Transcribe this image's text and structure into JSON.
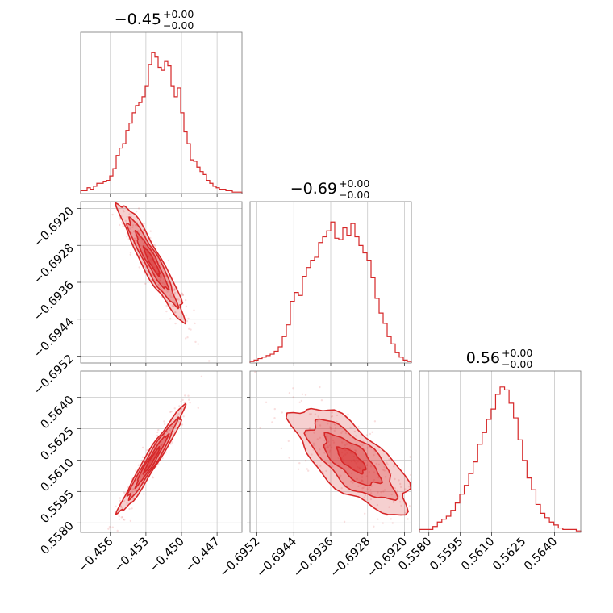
{
  "chart_data": {
    "type": "corner",
    "color": "#d62728",
    "parameters": [
      {
        "index": 0,
        "title": {
          "median": "−0.45",
          "plus": "+0.00",
          "minus": "−0.00"
        },
        "range": [
          -0.4585,
          -0.4449
        ],
        "ticks": [
          -0.456,
          -0.453,
          -0.45,
          -0.447
        ],
        "tick_labels": [
          "−0.456",
          "−0.453",
          "−0.450",
          "−0.447"
        ],
        "mean": -0.4525,
        "sd": 0.0012
      },
      {
        "index": 1,
        "title": {
          "median": "−0.69",
          "plus": "+0.00",
          "minus": "−0.00"
        },
        "range": [
          -0.69535,
          -0.69185
        ],
        "ticks": [
          -0.6952,
          -0.6944,
          -0.6936,
          -0.6928,
          -0.692
        ],
        "tick_labels": [
          "−0.6952",
          "−0.6944",
          "−0.6936",
          "−0.6928",
          "−0.6920"
        ],
        "mean": -0.69315,
        "sd": 0.00055
      },
      {
        "index": 2,
        "title": {
          "median": "0.56",
          "plus": "+0.00",
          "minus": "−0.00"
        },
        "range": [
          0.55755,
          0.56525
        ],
        "ticks": [
          0.558,
          0.5595,
          0.561,
          0.5625,
          0.564
        ],
        "tick_labels": [
          "0.5580",
          "0.5595",
          "0.5610",
          "0.5625",
          "0.5640"
        ],
        "mean": 0.561,
        "sd": 0.0011
      }
    ],
    "histograms": {
      "p0": [
        0.02,
        0.02,
        0.04,
        0.03,
        0.05,
        0.07,
        0.07,
        0.08,
        0.09,
        0.12,
        0.17,
        0.26,
        0.31,
        0.34,
        0.43,
        0.48,
        0.55,
        0.6,
        0.62,
        0.66,
        0.73,
        0.88,
        0.96,
        0.93,
        0.86,
        0.84,
        0.9,
        0.87,
        0.73,
        0.66,
        0.72,
        0.55,
        0.42,
        0.34,
        0.23,
        0.22,
        0.18,
        0.15,
        0.13,
        0.09,
        0.07,
        0.05,
        0.04,
        0.03,
        0.03,
        0.02,
        0.02,
        0.01,
        0.01,
        0.01
      ],
      "p1": [
        0.01,
        0.02,
        0.03,
        0.04,
        0.05,
        0.06,
        0.08,
        0.11,
        0.18,
        0.26,
        0.42,
        0.48,
        0.46,
        0.59,
        0.65,
        0.7,
        0.72,
        0.82,
        0.86,
        0.9,
        0.96,
        0.85,
        0.84,
        0.92,
        0.87,
        0.95,
        0.86,
        0.8,
        0.75,
        0.7,
        0.58,
        0.44,
        0.34,
        0.27,
        0.18,
        0.13,
        0.07,
        0.04,
        0.02,
        0.01
      ],
      "p2": [
        0.02,
        0.02,
        0.02,
        0.04,
        0.07,
        0.09,
        0.11,
        0.15,
        0.2,
        0.26,
        0.32,
        0.4,
        0.48,
        0.6,
        0.68,
        0.77,
        0.84,
        0.94,
        0.99,
        0.97,
        0.88,
        0.78,
        0.63,
        0.49,
        0.37,
        0.29,
        0.19,
        0.13,
        0.1,
        0.07,
        0.05,
        0.03,
        0.02,
        0.02,
        0.02,
        0.01
      ]
    },
    "pairs": [
      {
        "x": 0,
        "y": 1,
        "rho": -0.94
      },
      {
        "x": 0,
        "y": 2,
        "rho": 0.97
      },
      {
        "x": 1,
        "y": 2,
        "rho": -0.72
      }
    ]
  },
  "titles": {
    "t0_main": "−0.45",
    "t0_sup": "+0.00",
    "t0_sub": "−0.00",
    "t1_main": "−0.69",
    "t1_sup": "+0.00",
    "t1_sub": "−0.00",
    "t2_main": "0.56",
    "t2_sup": "+0.00",
    "t2_sub": "−0.00"
  }
}
